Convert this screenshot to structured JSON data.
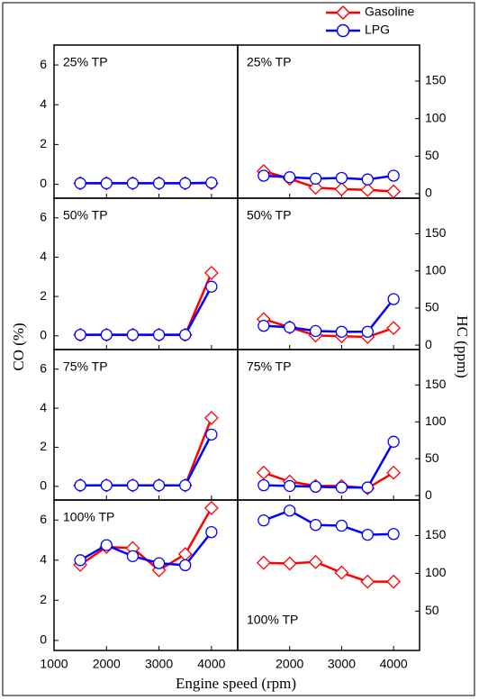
{
  "chart_data": [
    {
      "type": "line",
      "title": "25% TP",
      "ylabel": "CO (%)",
      "x": [
        1500,
        2000,
        2500,
        3000,
        3500,
        4000
      ],
      "xlim": [
        1000,
        4500
      ],
      "xticks": [
        1000,
        2000,
        3000,
        4000
      ],
      "ylim": [
        -0.7,
        7
      ],
      "yticks": [
        0,
        2,
        4,
        6
      ],
      "series": [
        {
          "name": "Gasoline",
          "color": "#ff0000",
          "values": [
            0.05,
            0.05,
            0.05,
            0.05,
            0.05,
            0.05
          ]
        },
        {
          "name": "LPG",
          "color": "#0000ff",
          "values": [
            0.05,
            0.05,
            0.05,
            0.05,
            0.05,
            0.08
          ]
        }
      ]
    },
    {
      "type": "line",
      "title": "25% TP",
      "ylabel": "HC (ppm)",
      "x": [
        1500,
        2000,
        2500,
        3000,
        3500,
        4000
      ],
      "xlim": [
        1000,
        4500
      ],
      "xticks": [
        2000,
        3000,
        4000
      ],
      "ylim": [
        -6,
        198
      ],
      "yticks": [
        0,
        50,
        100,
        150
      ],
      "series": [
        {
          "color": "#ff0000",
          "values": [
            30,
            20,
            8,
            6,
            5,
            3
          ]
        },
        {
          "color": "#0000ff",
          "values": [
            24,
            22,
            20,
            21,
            19,
            24
          ]
        }
      ]
    },
    {
      "type": "line",
      "title": "50% TP",
      "x": [
        1500,
        2000,
        2500,
        3000,
        3500,
        4000
      ],
      "xlim": [
        1000,
        4500
      ],
      "xticks": [
        1000,
        2000,
        3000,
        4000
      ],
      "ylim": [
        -0.7,
        7
      ],
      "yticks": [
        0,
        2,
        4,
        6
      ],
      "series": [
        {
          "color": "#ff0000",
          "values": [
            0.05,
            0.05,
            0.05,
            0.05,
            0.05,
            3.2
          ]
        },
        {
          "color": "#0000ff",
          "values": [
            0.05,
            0.05,
            0.05,
            0.05,
            0.05,
            2.5
          ]
        }
      ]
    },
    {
      "type": "line",
      "title": "50% TP",
      "x": [
        1500,
        2000,
        2500,
        3000,
        3500,
        4000
      ],
      "xlim": [
        1000,
        4500
      ],
      "xticks": [
        2000,
        3000,
        4000
      ],
      "ylim": [
        -6,
        198
      ],
      "yticks": [
        0,
        50,
        100,
        150
      ],
      "series": [
        {
          "color": "#ff0000",
          "values": [
            35,
            24,
            13,
            12,
            11,
            23
          ]
        },
        {
          "color": "#0000ff",
          "values": [
            26,
            24,
            19,
            18,
            18,
            62
          ]
        }
      ]
    },
    {
      "type": "line",
      "title": "75% TP",
      "x": [
        1500,
        2000,
        2500,
        3000,
        3500,
        4000
      ],
      "xlim": [
        1000,
        4500
      ],
      "xticks": [
        1000,
        2000,
        3000,
        4000
      ],
      "ylim": [
        -0.7,
        7
      ],
      "yticks": [
        0,
        2,
        4,
        6
      ],
      "series": [
        {
          "color": "#ff0000",
          "values": [
            0.05,
            0.05,
            0.05,
            0.05,
            0.05,
            3.5
          ]
        },
        {
          "color": "#0000ff",
          "values": [
            0.05,
            0.05,
            0.05,
            0.05,
            0.05,
            2.65
          ]
        }
      ]
    },
    {
      "type": "line",
      "title": "75% TP",
      "x": [
        1500,
        2000,
        2500,
        3000,
        3500,
        4000
      ],
      "xlim": [
        1000,
        4500
      ],
      "xticks": [
        2000,
        3000,
        4000
      ],
      "ylim": [
        -6,
        198
      ],
      "yticks": [
        0,
        50,
        100,
        150
      ],
      "series": [
        {
          "color": "#ff0000",
          "values": [
            31,
            19,
            13,
            13,
            10,
            31
          ]
        },
        {
          "color": "#0000ff",
          "values": [
            14,
            13,
            12,
            11,
            11,
            73
          ]
        }
      ]
    },
    {
      "type": "line",
      "title": "100% TP",
      "xlabel": "Engine speed  (rpm)",
      "x": [
        1500,
        2000,
        2500,
        3000,
        3500,
        4000
      ],
      "xlim": [
        1000,
        4500
      ],
      "xticks": [
        1000,
        2000,
        3000,
        4000
      ],
      "ylim": [
        -0.5,
        7
      ],
      "yticks": [
        0,
        2,
        4,
        6
      ],
      "series": [
        {
          "color": "#ff0000",
          "values": [
            3.77,
            4.66,
            4.6,
            3.5,
            4.3,
            6.6
          ]
        },
        {
          "color": "#0000ff",
          "values": [
            4.0,
            4.75,
            4.2,
            3.85,
            3.75,
            5.4
          ]
        }
      ]
    },
    {
      "type": "line",
      "title": "100% TP",
      "x": [
        1500,
        2000,
        2500,
        3000,
        3500,
        4000
      ],
      "xlim": [
        1000,
        4500
      ],
      "xticks": [
        2000,
        3000,
        4000
      ],
      "ylim": [
        -2,
        197
      ],
      "yticks": [
        50,
        100,
        150
      ],
      "series": [
        {
          "color": "#ff0000",
          "values": [
            114,
            113,
            115,
            101,
            89,
            89
          ]
        },
        {
          "color": "#0000ff",
          "values": [
            170,
            183,
            164,
            163,
            151,
            152
          ]
        }
      ]
    }
  ]
}
